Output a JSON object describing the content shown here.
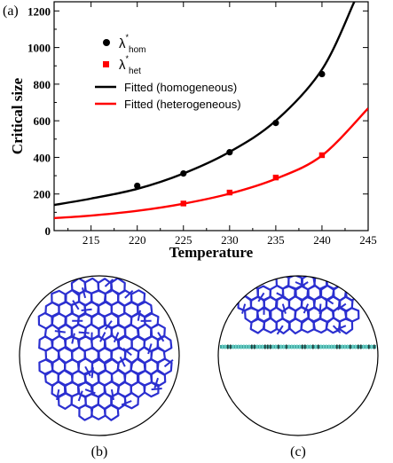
{
  "panel_labels": {
    "a": "(a)",
    "b": "(b)",
    "c": "(c)"
  },
  "chart_data": {
    "type": "scatter",
    "title": "",
    "xlabel": "Temperature",
    "ylabel": "Critical size",
    "xlim": [
      211,
      245
    ],
    "ylim": [
      0,
      1250
    ],
    "x_ticks": [
      215,
      220,
      225,
      230,
      235,
      240,
      245
    ],
    "y_ticks": [
      0,
      200,
      400,
      600,
      800,
      1000,
      1200
    ],
    "grid": false,
    "legend_position": "top-left",
    "series": [
      {
        "name": "λ*hom",
        "legend_main": "λ",
        "legend_sup": "*",
        "legend_sub": "hom",
        "marker": "circle",
        "color": "#000000",
        "x": [
          220,
          225,
          230,
          235,
          240
        ],
        "y": [
          245,
          312,
          428,
          588,
          855
        ]
      },
      {
        "name": "λ*het",
        "legend_main": "λ",
        "legend_sup": "*",
        "legend_sub": "het",
        "marker": "square",
        "color": "#ff0000",
        "x": [
          225,
          230,
          235,
          240
        ],
        "y": [
          148,
          208,
          290,
          412
        ]
      },
      {
        "name": "Fitted (homogeneous)",
        "line": true,
        "color": "#000000",
        "x": [
          211,
          215,
          220,
          225,
          230,
          235,
          240,
          243.5
        ],
        "y": [
          140,
          175,
          228,
          312,
          430,
          600,
          880,
          1250
        ]
      },
      {
        "name": "Fitted (heterogeneous)",
        "line": true,
        "color": "#ff0000",
        "x": [
          211,
          215,
          220,
          225,
          230,
          235,
          240,
          245
        ],
        "y": [
          68,
          82,
          108,
          147,
          202,
          283,
          410,
          668
        ]
      }
    ]
  },
  "colors": {
    "ice": "#2b2fd0",
    "substrate": "#3fa7a0",
    "axes": "#000000"
  }
}
